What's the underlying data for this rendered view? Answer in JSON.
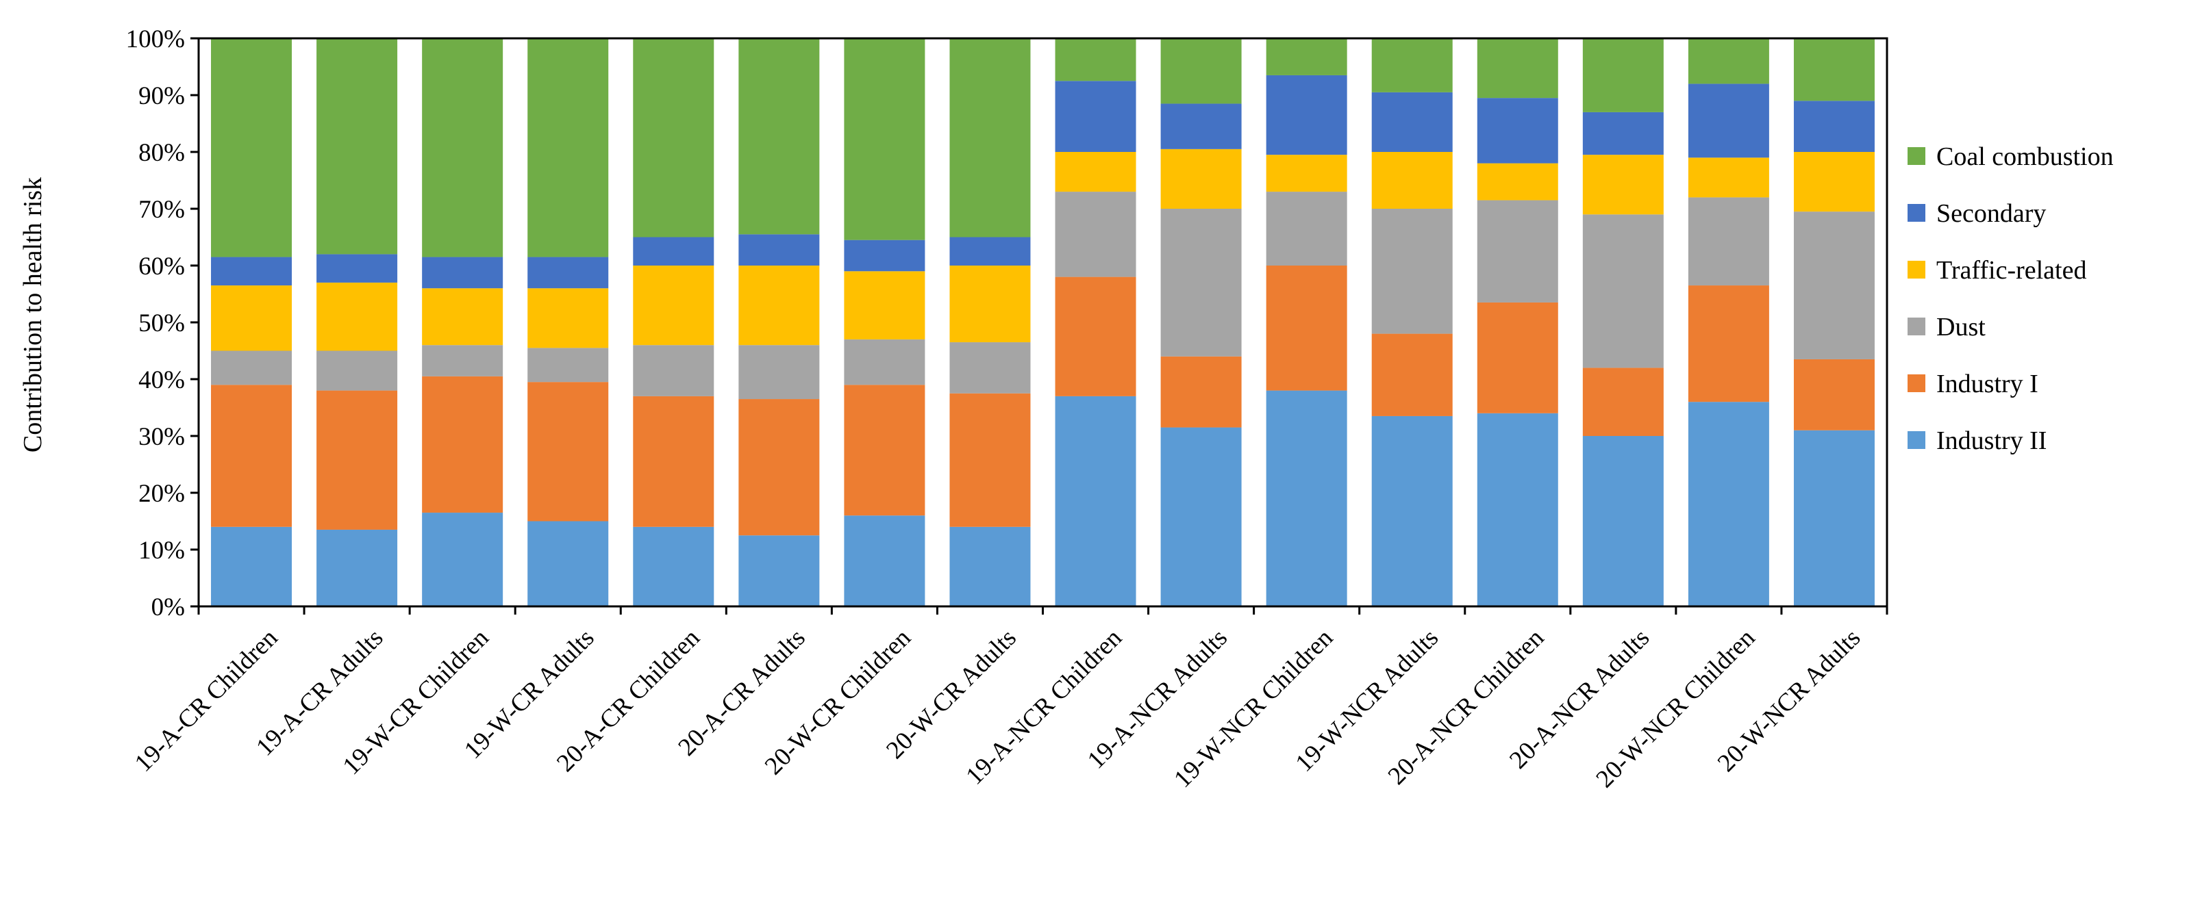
{
  "chart_data": {
    "type": "bar",
    "stacked": true,
    "title": "",
    "xlabel": "",
    "ylabel": "Contribution to health risk",
    "ylim": [
      0,
      100
    ],
    "yticks": [
      "0%",
      "10%",
      "20%",
      "30%",
      "40%",
      "50%",
      "60%",
      "70%",
      "80%",
      "90%",
      "100%"
    ],
    "legend_position": "right",
    "categories": [
      "19-A-CR Children",
      "19-A-CR Adults",
      "19-W-CR Children",
      "19-W-CR Adults",
      "20-A-CR Children",
      "20-A-CR Adults",
      "20-W-CR Children",
      "20-W-CR Adults",
      "19-A-NCR Children",
      "19-A-NCR Adults",
      "19-W-NCR Children",
      "19-W-NCR Adults",
      "20-A-NCR Children",
      "20-A-NCR Adults",
      "20-W-NCR Children",
      "20-W-NCR Adults"
    ],
    "series": [
      {
        "name": "Industry II",
        "color": "#5b9bd5",
        "values": [
          14,
          13.5,
          16.5,
          15,
          14,
          12.5,
          16,
          14,
          37,
          31.5,
          38,
          33.5,
          34,
          30,
          36,
          31
        ]
      },
      {
        "name": "Industry I",
        "color": "#ed7d31",
        "values": [
          25,
          24.5,
          24,
          24.5,
          23,
          24,
          23,
          23.5,
          21,
          12.5,
          22,
          14.5,
          19.5,
          12,
          20.5,
          12.5
        ]
      },
      {
        "name": "Dust",
        "color": "#a5a5a5",
        "values": [
          6,
          7,
          5.5,
          6,
          9,
          9.5,
          8,
          9,
          15,
          26,
          13,
          22,
          18,
          27,
          15.5,
          26
        ]
      },
      {
        "name": "Traffic-related",
        "color": "#ffc000",
        "values": [
          11.5,
          12,
          10,
          10.5,
          14,
          14,
          12,
          13.5,
          7,
          10.5,
          6.5,
          10,
          6.5,
          10.5,
          7,
          10.5
        ]
      },
      {
        "name": "Secondary",
        "color": "#4472c4",
        "values": [
          5,
          5,
          5.5,
          5.5,
          5,
          5.5,
          5.5,
          5,
          12.5,
          8,
          14,
          10.5,
          11.5,
          7.5,
          13,
          9
        ]
      },
      {
        "name": "Coal combustion",
        "color": "#70ad47",
        "values": [
          38.5,
          38,
          38.5,
          38.5,
          35,
          34.5,
          35.5,
          35,
          7.5,
          11.5,
          6.5,
          9.5,
          10.5,
          13,
          8,
          11
        ]
      }
    ],
    "legend_order": [
      "Coal combustion",
      "Secondary",
      "Traffic-related",
      "Dust",
      "Industry I",
      "Industry II"
    ]
  }
}
